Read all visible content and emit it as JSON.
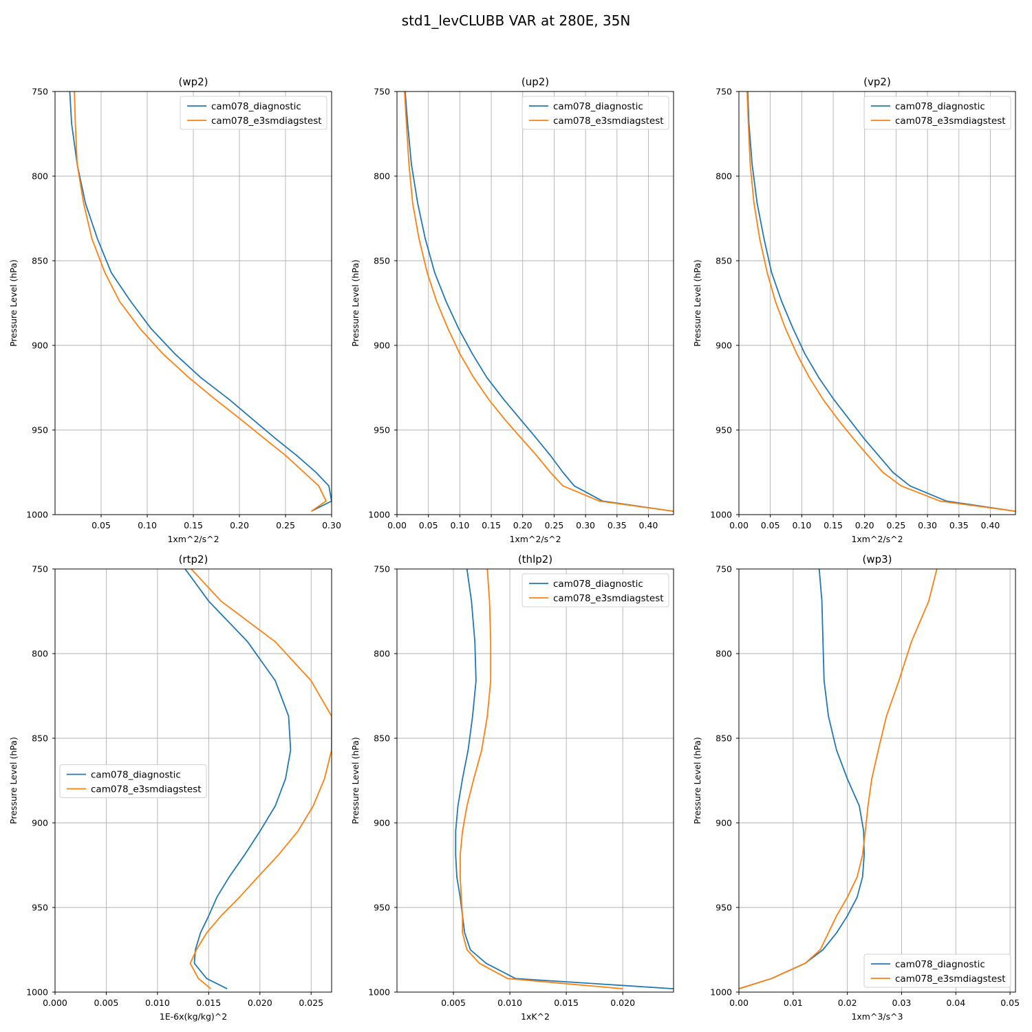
{
  "figure_title": "std1_levCLUBB VAR at 280E, 35N",
  "colors": {
    "series_1": "#1f77b4",
    "series_2": "#ff7f0e",
    "grid": "#b0b0b0"
  },
  "chart_data": [
    {
      "type": "line",
      "title": "(wp2)",
      "xlabel": "1xm^2/s^2",
      "ylabel": "Pressure Level (hPa)",
      "xlim": [
        0.0,
        0.3
      ],
      "ylim": [
        1000,
        750
      ],
      "xticks": [
        0.05,
        0.1,
        0.15,
        0.2,
        0.25,
        0.3
      ],
      "xtick_labels": [
        "0.05",
        "0.10",
        "0.15",
        "0.20",
        "0.25",
        "0.30"
      ],
      "yticks": [
        750,
        800,
        850,
        900,
        950,
        1000
      ],
      "ytick_labels": [
        "750",
        "800",
        "850",
        "900",
        "950",
        "1000"
      ],
      "legend_loc": "upper-right",
      "series": [
        {
          "name": "cam078_diagnostic",
          "x": [
            0.016,
            0.018,
            0.024,
            0.033,
            0.046,
            0.061,
            0.082,
            0.104,
            0.13,
            0.158,
            0.189,
            0.215,
            0.239,
            0.262,
            0.283,
            0.297,
            0.3,
            0.278
          ],
          "y": [
            750,
            769,
            793,
            816,
            837,
            857,
            874,
            890,
            905,
            919,
            932,
            944,
            955,
            965,
            975,
            983,
            992,
            998
          ]
        },
        {
          "name": "cam078_e3smdiagstest",
          "x": [
            0.021,
            0.022,
            0.024,
            0.031,
            0.04,
            0.054,
            0.07,
            0.092,
            0.117,
            0.145,
            0.174,
            0.202,
            0.227,
            0.25,
            0.27,
            0.286,
            0.294,
            0.278
          ],
          "y": [
            750,
            769,
            793,
            816,
            837,
            857,
            874,
            890,
            905,
            919,
            932,
            944,
            955,
            965,
            975,
            983,
            992,
            998
          ]
        }
      ]
    },
    {
      "type": "line",
      "title": "(up2)",
      "xlabel": "1xm^2/s^2",
      "ylabel": "Pressure Level (hPa)",
      "xlim": [
        0.0,
        0.44
      ],
      "ylim": [
        1000,
        750
      ],
      "xticks": [
        0.0,
        0.05,
        0.1,
        0.15,
        0.2,
        0.25,
        0.3,
        0.35,
        0.4
      ],
      "xtick_labels": [
        "0.00",
        "0.05",
        "0.10",
        "0.15",
        "0.20",
        "0.25",
        "0.30",
        "0.35",
        "0.40"
      ],
      "yticks": [
        750,
        800,
        850,
        900,
        950,
        1000
      ],
      "ytick_labels": [
        "750",
        "800",
        "850",
        "900",
        "950",
        "1000"
      ],
      "legend_loc": "upper-right",
      "series": [
        {
          "name": "cam078_diagnostic",
          "x": [
            0.013,
            0.017,
            0.023,
            0.033,
            0.045,
            0.06,
            0.078,
            0.098,
            0.12,
            0.143,
            0.17,
            0.197,
            0.222,
            0.244,
            0.264,
            0.282,
            0.327,
            0.44
          ],
          "y": [
            750,
            769,
            793,
            816,
            837,
            857,
            874,
            890,
            905,
            919,
            932,
            944,
            955,
            965,
            975,
            983,
            992,
            998
          ]
        },
        {
          "name": "cam078_e3smdiagstest",
          "x": [
            0.012,
            0.015,
            0.019,
            0.025,
            0.035,
            0.048,
            0.063,
            0.081,
            0.1,
            0.122,
            0.146,
            0.172,
            0.198,
            0.222,
            0.244,
            0.264,
            0.322,
            0.44
          ],
          "y": [
            750,
            769,
            793,
            816,
            837,
            857,
            874,
            890,
            905,
            919,
            932,
            944,
            955,
            965,
            975,
            983,
            992,
            998
          ]
        }
      ]
    },
    {
      "type": "line",
      "title": "(vp2)",
      "xlabel": "1xm^2/s^2",
      "ylabel": "Pressure Level (hPa)",
      "xlim": [
        0.0,
        0.44
      ],
      "ylim": [
        1000,
        750
      ],
      "xticks": [
        0.0,
        0.05,
        0.1,
        0.15,
        0.2,
        0.25,
        0.3,
        0.35,
        0.4
      ],
      "xtick_labels": [
        "0.00",
        "0.05",
        "0.10",
        "0.15",
        "0.20",
        "0.25",
        "0.30",
        "0.35",
        "0.40"
      ],
      "yticks": [
        750,
        800,
        850,
        900,
        950,
        1000
      ],
      "ytick_labels": [
        "750",
        "800",
        "850",
        "900",
        "950",
        "1000"
      ],
      "legend_loc": "upper-right",
      "series": [
        {
          "name": "cam078_diagnostic",
          "x": [
            0.014,
            0.016,
            0.021,
            0.029,
            0.04,
            0.052,
            0.068,
            0.086,
            0.105,
            0.127,
            0.151,
            0.176,
            0.199,
            0.222,
            0.245,
            0.272,
            0.33,
            0.44
          ],
          "y": [
            750,
            769,
            793,
            816,
            837,
            857,
            874,
            890,
            905,
            919,
            932,
            944,
            955,
            965,
            975,
            983,
            992,
            998
          ]
        },
        {
          "name": "cam078_e3smdiagstest",
          "x": [
            0.013,
            0.015,
            0.018,
            0.024,
            0.033,
            0.045,
            0.058,
            0.074,
            0.092,
            0.112,
            0.134,
            0.158,
            0.182,
            0.205,
            0.229,
            0.258,
            0.32,
            0.44
          ],
          "y": [
            750,
            769,
            793,
            816,
            837,
            857,
            874,
            890,
            905,
            919,
            932,
            944,
            955,
            965,
            975,
            983,
            992,
            998
          ]
        }
      ]
    },
    {
      "type": "line",
      "title": "(rtp2)",
      "xlabel": "1E-6x(kg/kg)^2",
      "ylabel": "Pressure Level (hPa)",
      "xlim": [
        0.0,
        0.027
      ],
      "ylim": [
        1000,
        750
      ],
      "xticks": [
        0.0,
        0.005,
        0.01,
        0.015,
        0.02,
        0.025
      ],
      "xtick_labels": [
        "0.000",
        "0.005",
        "0.010",
        "0.015",
        "0.020",
        "0.025"
      ],
      "yticks": [
        750,
        800,
        850,
        900,
        950,
        1000
      ],
      "ytick_labels": [
        "750",
        "800",
        "850",
        "900",
        "950",
        "1000"
      ],
      "legend_loc": "center-left",
      "series": [
        {
          "name": "cam078_diagnostic",
          "x": [
            0.0127,
            0.015,
            0.0188,
            0.0215,
            0.0228,
            0.023,
            0.0225,
            0.0215,
            0.02,
            0.0185,
            0.017,
            0.0158,
            0.015,
            0.0142,
            0.0137,
            0.0136,
            0.0148,
            0.0168
          ],
          "y": [
            750,
            769,
            793,
            816,
            837,
            857,
            874,
            890,
            905,
            919,
            932,
            944,
            955,
            965,
            975,
            983,
            992,
            998
          ]
        },
        {
          "name": "cam078_e3smdiagstest",
          "x": [
            0.0133,
            0.0162,
            0.0215,
            0.025,
            0.027,
            0.027,
            0.0263,
            0.0252,
            0.0237,
            0.0218,
            0.0198,
            0.018,
            0.0162,
            0.0148,
            0.0138,
            0.0132,
            0.014,
            0.0152
          ],
          "y": [
            750,
            769,
            793,
            816,
            837,
            857,
            874,
            890,
            905,
            919,
            932,
            944,
            955,
            965,
            975,
            983,
            992,
            998
          ]
        }
      ]
    },
    {
      "type": "line",
      "title": "(thlp2)",
      "xlabel": "1xK^2",
      "ylabel": "Pressure Level (hPa)",
      "xlim": [
        0.0,
        0.0245
      ],
      "ylim": [
        1000,
        750
      ],
      "xticks": [
        0.005,
        0.01,
        0.015,
        0.02
      ],
      "xtick_labels": [
        "0.005",
        "0.010",
        "0.015",
        "0.020"
      ],
      "yticks": [
        750,
        800,
        850,
        900,
        950,
        1000
      ],
      "ytick_labels": [
        "750",
        "800",
        "850",
        "900",
        "950",
        "1000"
      ],
      "legend_loc": "upper-right",
      "series": [
        {
          "name": "cam078_diagnostic",
          "x": [
            0.0062,
            0.0066,
            0.0069,
            0.007,
            0.0067,
            0.0063,
            0.0058,
            0.0054,
            0.0052,
            0.0052,
            0.0053,
            0.0056,
            0.0058,
            0.006,
            0.0065,
            0.0079,
            0.0105,
            0.0245
          ],
          "y": [
            750,
            769,
            793,
            816,
            837,
            857,
            874,
            890,
            905,
            919,
            932,
            944,
            955,
            965,
            975,
            983,
            992,
            998
          ]
        },
        {
          "name": "cam078_e3smdiagstest",
          "x": [
            0.008,
            0.0082,
            0.0083,
            0.0083,
            0.008,
            0.0075,
            0.0068,
            0.0062,
            0.0058,
            0.0056,
            0.0056,
            0.0057,
            0.0058,
            0.0058,
            0.0062,
            0.0073,
            0.0098,
            0.02
          ],
          "y": [
            750,
            769,
            793,
            816,
            837,
            857,
            874,
            890,
            905,
            919,
            932,
            944,
            955,
            965,
            975,
            983,
            992,
            998
          ]
        }
      ]
    },
    {
      "type": "line",
      "title": "(wp3)",
      "xlabel": "1xm^3/s^3",
      "ylabel": "Pressure Level (hPa)",
      "xlim": [
        0.0,
        0.051
      ],
      "ylim": [
        1000,
        750
      ],
      "xticks": [
        0.0,
        0.01,
        0.02,
        0.03,
        0.04,
        0.05
      ],
      "xtick_labels": [
        "0.00",
        "0.01",
        "0.02",
        "0.03",
        "0.04",
        "0.05"
      ],
      "yticks": [
        750,
        800,
        850,
        900,
        950,
        1000
      ],
      "ytick_labels": [
        "750",
        "800",
        "850",
        "900",
        "950",
        "1000"
      ],
      "legend_loc": "lower-right",
      "series": [
        {
          "name": "cam078_diagnostic",
          "x": [
            0.0148,
            0.0153,
            0.0155,
            0.0157,
            0.0165,
            0.018,
            0.02,
            0.0222,
            0.023,
            0.0231,
            0.0228,
            0.0218,
            0.02,
            0.018,
            0.0155,
            0.0122,
            0.006,
            0.0
          ],
          "y": [
            750,
            769,
            793,
            816,
            837,
            857,
            874,
            890,
            905,
            919,
            932,
            944,
            955,
            965,
            975,
            983,
            992,
            998
          ]
        },
        {
          "name": "cam078_e3smdiagstest",
          "x": [
            0.0365,
            0.035,
            0.0318,
            0.0295,
            0.0272,
            0.0257,
            0.0245,
            0.0238,
            0.0233,
            0.0228,
            0.0218,
            0.02,
            0.018,
            0.0165,
            0.015,
            0.0122,
            0.006,
            0.0
          ],
          "y": [
            750,
            769,
            793,
            816,
            837,
            857,
            874,
            890,
            905,
            919,
            932,
            944,
            955,
            965,
            975,
            983,
            992,
            998
          ]
        }
      ]
    }
  ]
}
